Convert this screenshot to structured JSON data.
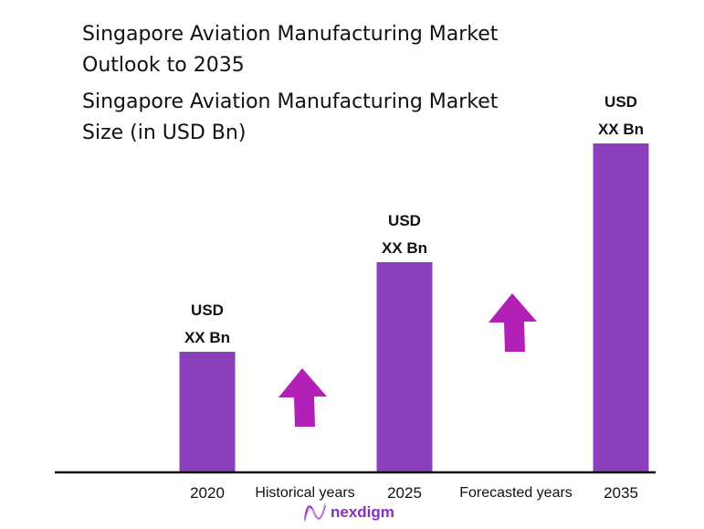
{
  "title": [
    "Singapore Aviation Manufacturing Market",
    "Outlook to 2035"
  ],
  "subtitle": [
    "Singapore Aviation Manufacturing Market",
    "Size (in USD Bn)"
  ],
  "chart_data": {
    "type": "bar",
    "title": "Singapore Aviation Manufacturing Market Outlook to 2035",
    "subtitle": "Singapore Aviation Manufacturing Market Size (in USD Bn)",
    "categories": [
      "2020",
      "2025",
      "2035"
    ],
    "values": [
      132,
      230,
      360
    ],
    "data_labels": [
      [
        "USD",
        "XX Bn"
      ],
      [
        "USD",
        "XX Bn"
      ],
      [
        "USD",
        "XX Bn"
      ]
    ],
    "between_labels": [
      "Historical years",
      "Forecasted years"
    ],
    "grid": false,
    "bar_color": "#8a40bb",
    "arrow_color": "#b320b8"
  },
  "logo": {
    "text": "nexdigm",
    "color": "#8a2fc4"
  }
}
